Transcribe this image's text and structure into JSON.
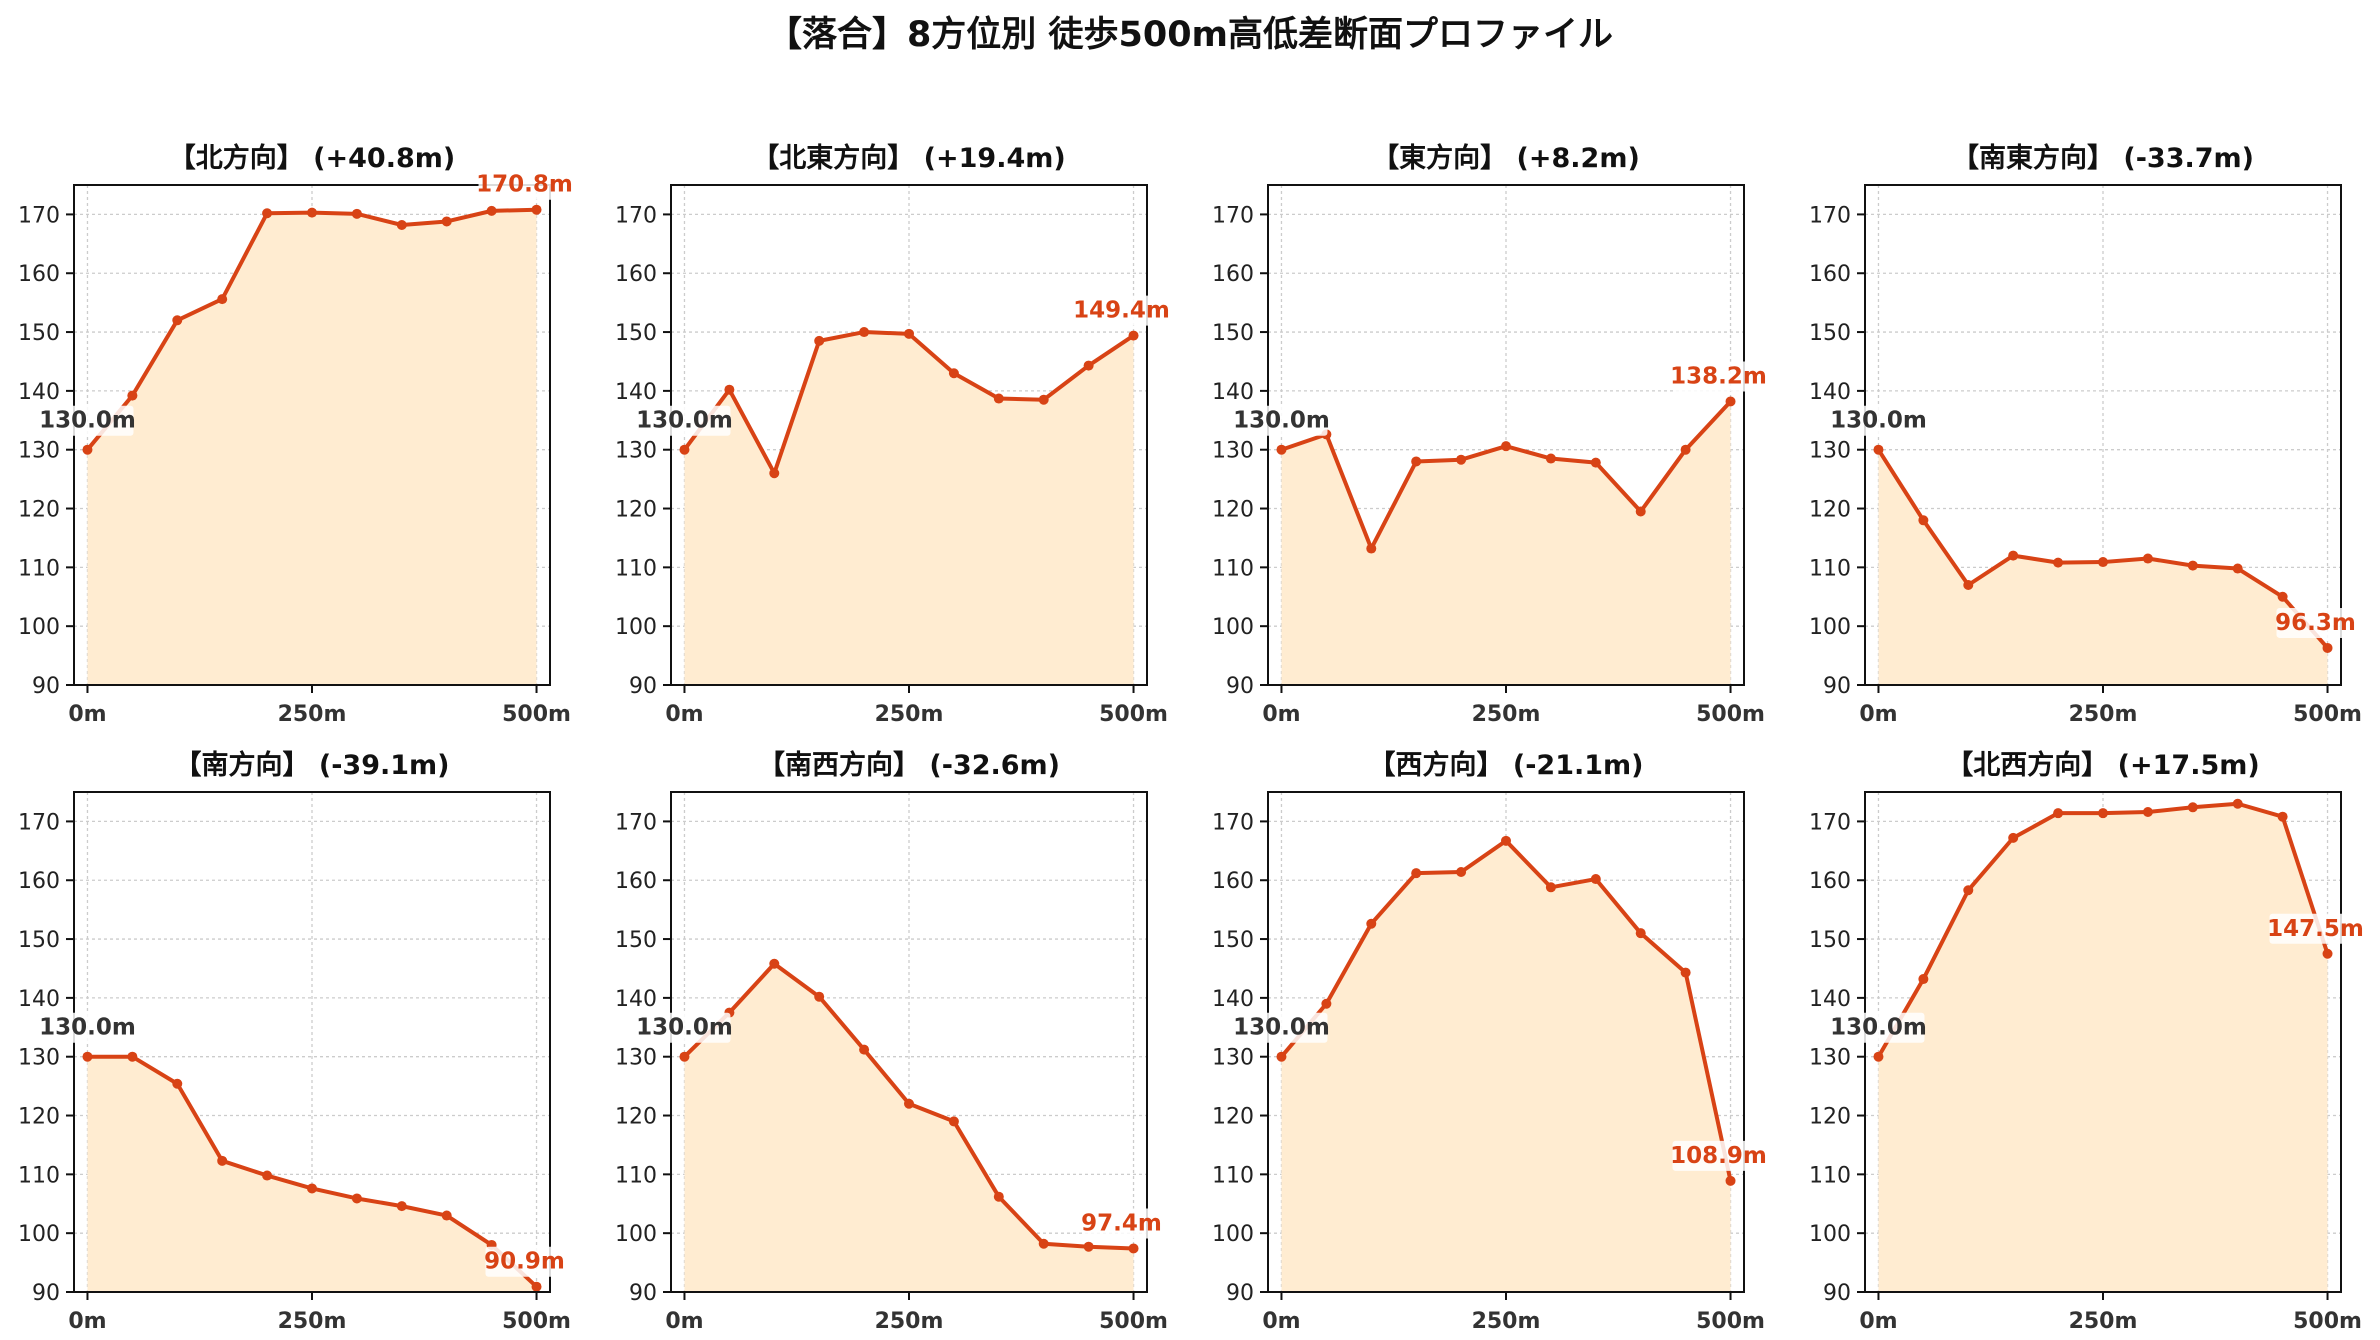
{
  "title": "【落合】8方位別 徒歩500m高低差断面プロファイル",
  "colors": {
    "line": "#d84315",
    "fill": "#ffecd1",
    "start_label": "#333333",
    "end_label": "#d84315"
  },
  "chart_data": [
    {
      "type": "area",
      "title": "【北方向】 (+40.8m)",
      "x": [
        0,
        50,
        100,
        150,
        200,
        250,
        300,
        350,
        400,
        450,
        500
      ],
      "y": [
        130.0,
        139.2,
        152.0,
        155.6,
        170.2,
        170.3,
        170.1,
        168.2,
        168.8,
        170.6,
        170.8
      ],
      "ylim": [
        90,
        175
      ],
      "yticks": [
        90,
        100,
        110,
        120,
        130,
        140,
        150,
        160,
        170
      ],
      "xticks": [
        0,
        250,
        500
      ],
      "xticklabels": [
        "0m",
        "250m",
        "500m"
      ],
      "start_label": "130.0m",
      "end_label": "170.8m",
      "grid": true
    },
    {
      "type": "area",
      "title": "【北東方向】 (+19.4m)",
      "x": [
        0,
        50,
        100,
        150,
        200,
        250,
        300,
        350,
        400,
        450,
        500
      ],
      "y": [
        130.0,
        140.2,
        126.0,
        148.5,
        150.0,
        149.7,
        143.0,
        138.7,
        138.5,
        144.3,
        149.4
      ],
      "ylim": [
        90,
        175
      ],
      "yticks": [
        90,
        100,
        110,
        120,
        130,
        140,
        150,
        160,
        170
      ],
      "xticks": [
        0,
        250,
        500
      ],
      "xticklabels": [
        "0m",
        "250m",
        "500m"
      ],
      "start_label": "130.0m",
      "end_label": "149.4m",
      "grid": true
    },
    {
      "type": "area",
      "title": "【東方向】 (+8.2m)",
      "x": [
        0,
        50,
        100,
        150,
        200,
        250,
        300,
        350,
        400,
        450,
        500
      ],
      "y": [
        130.0,
        132.6,
        113.2,
        128.0,
        128.3,
        130.6,
        128.5,
        127.8,
        119.5,
        130.0,
        138.2
      ],
      "ylim": [
        90,
        175
      ],
      "yticks": [
        90,
        100,
        110,
        120,
        130,
        140,
        150,
        160,
        170
      ],
      "xticks": [
        0,
        250,
        500
      ],
      "xticklabels": [
        "0m",
        "250m",
        "500m"
      ],
      "start_label": "130.0m",
      "end_label": "138.2m",
      "grid": true
    },
    {
      "type": "area",
      "title": "【南東方向】 (-33.7m)",
      "x": [
        0,
        50,
        100,
        150,
        200,
        250,
        300,
        350,
        400,
        450,
        500
      ],
      "y": [
        130.0,
        118.0,
        107.0,
        112.0,
        110.8,
        110.9,
        111.5,
        110.3,
        109.8,
        105.0,
        96.3
      ],
      "ylim": [
        90,
        175
      ],
      "yticks": [
        90,
        100,
        110,
        120,
        130,
        140,
        150,
        160,
        170
      ],
      "xticks": [
        0,
        250,
        500
      ],
      "xticklabels": [
        "0m",
        "250m",
        "500m"
      ],
      "start_label": "130.0m",
      "end_label": "96.3m",
      "grid": true
    },
    {
      "type": "area",
      "title": "【南方向】 (-39.1m)",
      "x": [
        0,
        50,
        100,
        150,
        200,
        250,
        300,
        350,
        400,
        450,
        500
      ],
      "y": [
        130.0,
        130.0,
        125.4,
        112.3,
        109.8,
        107.6,
        105.9,
        104.6,
        103.0,
        98.0,
        90.9
      ],
      "ylim": [
        90,
        175
      ],
      "yticks": [
        90,
        100,
        110,
        120,
        130,
        140,
        150,
        160,
        170
      ],
      "xticks": [
        0,
        250,
        500
      ],
      "xticklabels": [
        "0m",
        "250m",
        "500m"
      ],
      "start_label": "130.0m",
      "end_label": "90.9m",
      "grid": true
    },
    {
      "type": "area",
      "title": "【南西方向】 (-32.6m)",
      "x": [
        0,
        50,
        100,
        150,
        200,
        250,
        300,
        350,
        400,
        450,
        500
      ],
      "y": [
        130.0,
        137.5,
        145.8,
        140.2,
        131.2,
        122.0,
        119.0,
        106.2,
        98.2,
        97.7,
        97.4
      ],
      "ylim": [
        90,
        175
      ],
      "yticks": [
        90,
        100,
        110,
        120,
        130,
        140,
        150,
        160,
        170
      ],
      "xticks": [
        0,
        250,
        500
      ],
      "xticklabels": [
        "0m",
        "250m",
        "500m"
      ],
      "start_label": "130.0m",
      "end_label": "97.4m",
      "grid": true
    },
    {
      "type": "area",
      "title": "【西方向】 (-21.1m)",
      "x": [
        0,
        50,
        100,
        150,
        200,
        250,
        300,
        350,
        400,
        450,
        500
      ],
      "y": [
        130.0,
        139.0,
        152.6,
        161.2,
        161.4,
        166.7,
        158.8,
        160.2,
        151.0,
        144.3,
        108.9
      ],
      "ylim": [
        90,
        175
      ],
      "yticks": [
        90,
        100,
        110,
        120,
        130,
        140,
        150,
        160,
        170
      ],
      "xticks": [
        0,
        250,
        500
      ],
      "xticklabels": [
        "0m",
        "250m",
        "500m"
      ],
      "start_label": "130.0m",
      "end_label": "108.9m",
      "grid": true
    },
    {
      "type": "area",
      "title": "【北西方向】 (+17.5m)",
      "x": [
        0,
        50,
        100,
        150,
        200,
        250,
        300,
        350,
        400,
        450,
        500
      ],
      "y": [
        130.0,
        143.2,
        158.3,
        167.2,
        171.4,
        171.4,
        171.6,
        172.4,
        173.0,
        170.8,
        147.5
      ],
      "ylim": [
        90,
        175
      ],
      "yticks": [
        90,
        100,
        110,
        120,
        130,
        140,
        150,
        160,
        170
      ],
      "xticks": [
        0,
        250,
        500
      ],
      "xticklabels": [
        "0m",
        "250m",
        "500m"
      ],
      "start_label": "130.0m",
      "end_label": "147.5m",
      "grid": true
    }
  ]
}
